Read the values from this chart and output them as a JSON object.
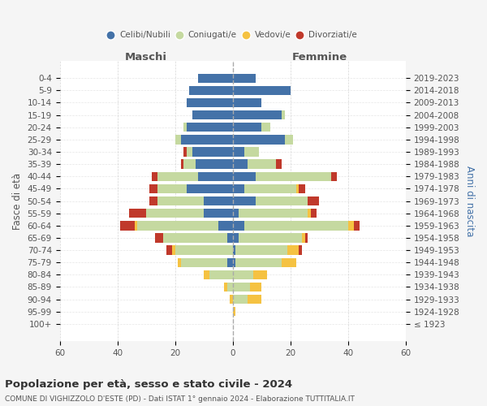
{
  "age_groups": [
    "100+",
    "95-99",
    "90-94",
    "85-89",
    "80-84",
    "75-79",
    "70-74",
    "65-69",
    "60-64",
    "55-59",
    "50-54",
    "45-49",
    "40-44",
    "35-39",
    "30-34",
    "25-29",
    "20-24",
    "15-19",
    "10-14",
    "5-9",
    "0-4"
  ],
  "birth_years": [
    "≤ 1923",
    "1924-1928",
    "1929-1933",
    "1934-1938",
    "1939-1943",
    "1944-1948",
    "1949-1953",
    "1954-1958",
    "1959-1963",
    "1964-1968",
    "1969-1973",
    "1974-1978",
    "1979-1983",
    "1984-1988",
    "1989-1993",
    "1994-1998",
    "1999-2003",
    "2004-2008",
    "2009-2013",
    "2014-2018",
    "2019-2023"
  ],
  "males": {
    "celibi": [
      0,
      0,
      0,
      0,
      0,
      2,
      0,
      2,
      5,
      10,
      10,
      16,
      12,
      13,
      14,
      18,
      16,
      14,
      16,
      15,
      12
    ],
    "coniugati": [
      0,
      0,
      0,
      2,
      8,
      16,
      20,
      22,
      28,
      20,
      16,
      10,
      14,
      4,
      2,
      2,
      1,
      0,
      0,
      0,
      0
    ],
    "vedovi": [
      0,
      0,
      1,
      1,
      2,
      1,
      1,
      0,
      1,
      0,
      0,
      0,
      0,
      0,
      0,
      0,
      0,
      0,
      0,
      0,
      0
    ],
    "divorziati": [
      0,
      0,
      0,
      0,
      0,
      0,
      2,
      3,
      5,
      6,
      3,
      3,
      2,
      1,
      1,
      0,
      0,
      0,
      0,
      0,
      0
    ]
  },
  "females": {
    "nubili": [
      0,
      0,
      0,
      0,
      0,
      1,
      1,
      2,
      4,
      2,
      8,
      4,
      8,
      5,
      4,
      18,
      10,
      17,
      10,
      20,
      8
    ],
    "coniugate": [
      0,
      0,
      5,
      6,
      7,
      16,
      18,
      22,
      36,
      24,
      18,
      18,
      26,
      10,
      5,
      3,
      3,
      1,
      0,
      0,
      0
    ],
    "vedove": [
      0,
      1,
      5,
      4,
      5,
      5,
      4,
      1,
      2,
      1,
      0,
      1,
      0,
      0,
      0,
      0,
      0,
      0,
      0,
      0,
      0
    ],
    "divorziate": [
      0,
      0,
      0,
      0,
      0,
      0,
      1,
      1,
      2,
      2,
      4,
      2,
      2,
      2,
      0,
      0,
      0,
      0,
      0,
      0,
      0
    ]
  },
  "colors": {
    "celibi_nubili": "#4472a8",
    "coniugati": "#c5d9a0",
    "vedovi": "#f5c242",
    "divorziati": "#c0392b"
  },
  "title": "Popolazione per età, sesso e stato civile - 2024",
  "subtitle": "COMUNE DI VIGHIZZOLO D'ESTE (PD) - Dati ISTAT 1° gennaio 2024 - Elaborazione TUTTITALIA.IT",
  "xlabel_left": "Maschi",
  "xlabel_right": "Femmine",
  "ylabel_left": "Fasce di età",
  "ylabel_right": "Anni di nascita",
  "xlim": 60,
  "legend_labels": [
    "Celibi/Nubili",
    "Coniugati/e",
    "Vedovi/e",
    "Divorziati/e"
  ],
  "bg_color": "#f5f5f5",
  "plot_bg": "#ffffff",
  "grid_color": "#cccccc"
}
